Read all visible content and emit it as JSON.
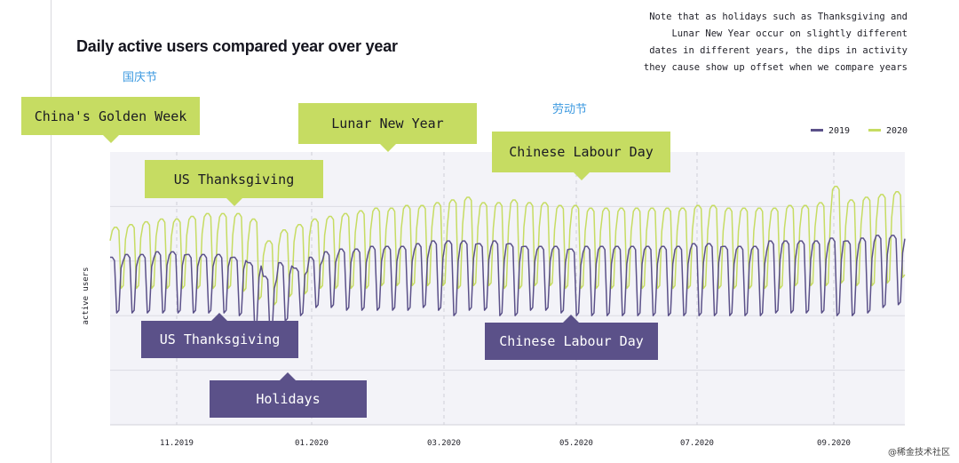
{
  "title": "Daily active users compared year over year",
  "note": "Note that as holidays such as Thanksgiving and Lunar New Year occur on slightly different dates in different years, the dips in activity they cause show up offset when we compare years",
  "cn_labels": {
    "national_day": "国庆节",
    "labour_day": "劳动节"
  },
  "watermark": "@稀金技术社区",
  "annotations": {
    "golden_week": "China's Golden Week",
    "us_thanksgiving_2020": "US Thanksgiving",
    "lunar_new_year": "Lunar New Year",
    "chinese_labour_day_2020": "Chinese Labour Day",
    "us_thanksgiving_2019": "US Thanksgiving",
    "holidays": "Holidays",
    "chinese_labour_day_2019": "Chinese Labour Day"
  },
  "colors": {
    "series_2019": "#5b5189",
    "series_2020": "#c6dc62",
    "plot_bg": "#f3f3f8",
    "grid": "#dcdce4"
  },
  "chart_data": {
    "type": "line",
    "title": "Daily active users compared year over year",
    "ylabel": "active users",
    "xlabel": "",
    "x_ticks": [
      "11.2019",
      "01.2020",
      "03.2020",
      "05.2020",
      "07.2020",
      "09.2020"
    ],
    "x_range": [
      "2019-10-01",
      "2020-09-30"
    ],
    "ylim": [
      0,
      100
    ],
    "grid": true,
    "legend_position": "top-right",
    "weekly_pattern": "weekday peaks, weekend dips",
    "series": [
      {
        "name": "2019",
        "color": "#5b5189",
        "weekday_peak": [
          62,
          63,
          63,
          64,
          64,
          63,
          63,
          63,
          62,
          60,
          55,
          60,
          58,
          62,
          64,
          65,
          65,
          66,
          66,
          66,
          67,
          68,
          68,
          68,
          67,
          68,
          67,
          66,
          66,
          66,
          65,
          66,
          66,
          66,
          66,
          66,
          66,
          66,
          67,
          67,
          66,
          66,
          66,
          68,
          68,
          68,
          68,
          69,
          68,
          69,
          70,
          70
        ],
        "weekend_dip": [
          41,
          41,
          41,
          41,
          41,
          41,
          41,
          41,
          40,
          36,
          33,
          38,
          40,
          43,
          43,
          42,
          42,
          42,
          42,
          42,
          43,
          42,
          40,
          42,
          42,
          40,
          40,
          42,
          42,
          41,
          40,
          40,
          40,
          40,
          40,
          40,
          40,
          40,
          40,
          40,
          40,
          40,
          40,
          41,
          41,
          41,
          41,
          40,
          40,
          41,
          43,
          44
        ]
      },
      {
        "name": "2020",
        "color": "#c6dc62",
        "weekday_peak": [
          73,
          74,
          75,
          76,
          76,
          77,
          78,
          78,
          78,
          76,
          68,
          72,
          74,
          76,
          77,
          78,
          79,
          80,
          80,
          81,
          81,
          82,
          83,
          84,
          82,
          82,
          83,
          82,
          82,
          81,
          81,
          80,
          80,
          80,
          80,
          80,
          80,
          80,
          81,
          81,
          80,
          80,
          80,
          80,
          81,
          81,
          82,
          88,
          83,
          84,
          85,
          86
        ],
        "weekend_dip": [
          50,
          50,
          50,
          50,
          50,
          50,
          50,
          50,
          49,
          46,
          44,
          47,
          48,
          50,
          50,
          50,
          50,
          51,
          51,
          51,
          51,
          51,
          50,
          51,
          51,
          50,
          50,
          51,
          51,
          50,
          50,
          50,
          50,
          50,
          50,
          50,
          50,
          50,
          50,
          50,
          50,
          50,
          50,
          50,
          51,
          51,
          51,
          52,
          51,
          51,
          52,
          54
        ]
      }
    ]
  }
}
